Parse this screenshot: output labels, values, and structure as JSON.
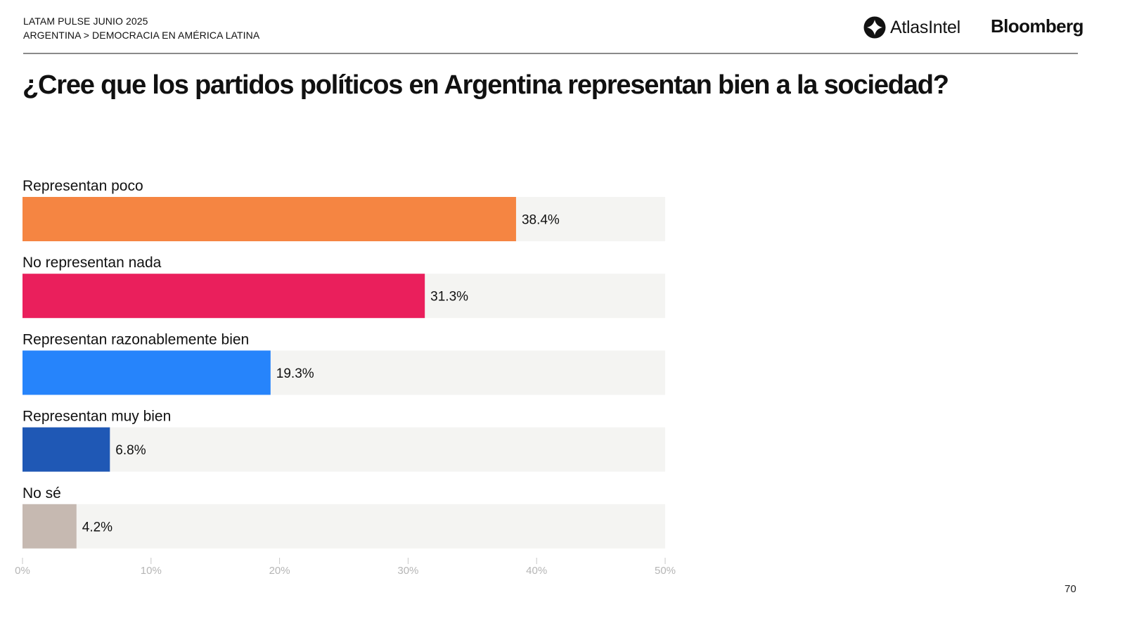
{
  "header": {
    "line1": "LATAM PULSE JUNIO 2025",
    "line2": "ARGENTINA > DEMOCRACIA EN AMÉRICA LATINA",
    "logo_atlas": "AtlasIntel",
    "logo_bloomberg": "Bloomberg"
  },
  "page_number": "70",
  "colors": {
    "track": "#f4f4f2",
    "tick": "#c8c8c8"
  },
  "chart_data": {
    "type": "bar",
    "orientation": "horizontal",
    "title": "¿Cree que los partidos políticos en Argentina representan bien a la sociedad?",
    "categories": [
      "Representan poco",
      "No representan nada",
      "Representan razonablemente bien",
      "Representan muy bien",
      "No sé"
    ],
    "values": [
      38.4,
      31.3,
      19.3,
      6.8,
      4.2
    ],
    "value_labels": [
      "38.4%",
      "31.3%",
      "19.3%",
      "6.8%",
      "4.2%"
    ],
    "bar_colors": [
      "#f58542",
      "#ea1f5c",
      "#2684fb",
      "#1f58b5",
      "#c6b9b1"
    ],
    "xlim": [
      0,
      50
    ],
    "x_ticks": [
      0,
      10,
      20,
      30,
      40,
      50
    ],
    "x_tick_labels": [
      "0%",
      "10%",
      "20%",
      "30%",
      "40%",
      "50%"
    ],
    "xlabel": "",
    "ylabel": "",
    "grid": false,
    "legend": "none"
  }
}
